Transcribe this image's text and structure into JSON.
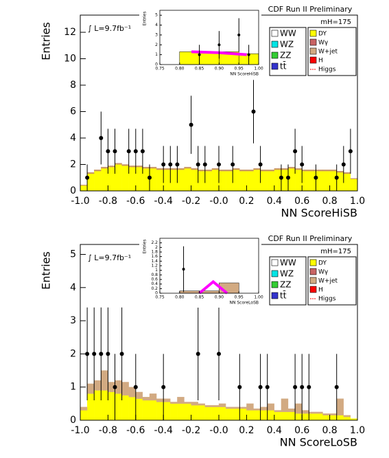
{
  "chart_data": [
    {
      "type": "histogram",
      "title": "CDF Run II Preliminary",
      "ylabel": "Entries",
      "xlabel": "NN ScoreHiSB",
      "lumi": "∫ L=9.7fb⁻¹",
      "mass_label": "mH=175",
      "xlim": [
        -1,
        1
      ],
      "ylim": [
        0,
        13.3
      ],
      "xticks": [
        {
          "value": -1,
          "label": "-1.0"
        },
        {
          "value": -0.8,
          "label": "-0.8"
        },
        {
          "value": -0.6,
          "label": "-0.6"
        },
        {
          "value": -0.4,
          "label": "-0.4"
        },
        {
          "value": -0.2,
          "label": "-0.2"
        },
        {
          "value": 0,
          "label": "-0.0"
        },
        0.2,
        0.4,
        0.6,
        0.8,
        {
          "value": 1,
          "label": "1.0"
        }
      ],
      "yticks": [
        0,
        2,
        4,
        6,
        8,
        10,
        12
      ],
      "bins": [
        -1,
        -0.95,
        -0.9,
        -0.85,
        -0.8,
        -0.75,
        -0.7,
        -0.65,
        -0.6,
        -0.55,
        -0.5,
        -0.45,
        -0.4,
        -0.35,
        -0.3,
        -0.25,
        -0.2,
        -0.15,
        -0.1,
        -0.05,
        0,
        0.05,
        0.1,
        0.15,
        0.2,
        0.25,
        0.3,
        0.35,
        0.4,
        0.45,
        0.5,
        0.55,
        0.6,
        0.65,
        0.7,
        0.75,
        0.8,
        0.85,
        0.9,
        0.95,
        1
      ],
      "series": [
        {
          "name": "DY",
          "color": "#ffff00",
          "values": [
            0.4,
            1.3,
            1.5,
            1.7,
            1.8,
            2.0,
            1.9,
            1.8,
            1.8,
            1.7,
            1.7,
            1.6,
            1.6,
            1.6,
            1.6,
            1.7,
            1.6,
            1.5,
            1.5,
            1.6,
            1.5,
            1.5,
            1.6,
            1.5,
            1.5,
            1.6,
            1.5,
            1.5,
            1.6,
            1.6,
            1.7,
            1.6,
            1.5,
            1.5,
            1.5,
            1.5,
            1.5,
            1.4,
            1.3,
            0.9
          ]
        },
        {
          "name": "W+jet",
          "color": "#c89664",
          "values": [
            0.05,
            0.1,
            0.1,
            0.1,
            0.1,
            0.1,
            0.1,
            0.1,
            0.1,
            0.1,
            0.1,
            0.1,
            0.1,
            0.1,
            0.1,
            0.1,
            0.1,
            0.1,
            0.1,
            0.1,
            0.1,
            0.1,
            0.1,
            0.1,
            0.1,
            0.1,
            0.1,
            0.1,
            0.1,
            0.1,
            0.1,
            0.1,
            0.1,
            0.1,
            0.1,
            0.1,
            0.1,
            0.1,
            0.1,
            0.05
          ]
        }
      ],
      "points": {
        "x": [
          -0.95,
          -0.85,
          -0.8,
          -0.75,
          -0.65,
          -0.6,
          -0.55,
          -0.5,
          -0.4,
          -0.35,
          -0.3,
          -0.2,
          -0.15,
          -0.1,
          0.0,
          0.1,
          0.25,
          0.3,
          0.45,
          0.5,
          0.55,
          0.6,
          0.7,
          0.85,
          0.9,
          0.95
        ],
        "values": [
          1,
          4,
          3,
          3,
          3,
          3,
          3,
          1,
          2,
          2,
          2,
          5,
          2,
          2,
          2,
          2,
          6,
          2,
          1,
          1,
          3,
          2,
          1,
          1,
          2,
          3
        ],
        "errors": [
          1,
          2,
          1.7,
          1.7,
          1.7,
          1.7,
          1.7,
          1,
          1.4,
          1.4,
          1.4,
          2.2,
          1.4,
          1.4,
          1.4,
          1.4,
          2.4,
          1.4,
          1,
          1,
          1.7,
          1.4,
          1,
          1,
          1.4,
          1.7
        ]
      },
      "legend": [
        {
          "name": "WW",
          "color": "#ffffff"
        },
        {
          "name": "WZ",
          "color": "#00e5e5"
        },
        {
          "name": "ZZ",
          "color": "#33cc33"
        },
        {
          "name": "tt̄",
          "color": "#3333cc"
        },
        {
          "name": "DY",
          "color": "#ffff00"
        },
        {
          "name": "Wγ",
          "color": "#c86464"
        },
        {
          "name": "W+jet",
          "color": "#d2aa82"
        },
        {
          "name": "H",
          "color": "#ff0000"
        },
        {
          "name": "Higgs",
          "color": "#ff0000"
        }
      ],
      "inset": {
        "ylabel": "Entries",
        "xlabel": "NN ScoreHiSB",
        "xlim": [
          0.75,
          1.0
        ],
        "ylim": [
          0,
          5.5
        ],
        "xticks": [
          0.75,
          {
            "value": 0.8,
            "label": "0.80"
          },
          0.85,
          {
            "value": 0.9,
            "label": "0.90"
          },
          0.95,
          {
            "value": 1,
            "label": "1.00"
          }
        ],
        "yticks": [
          0,
          1,
          2,
          3,
          4,
          5
        ],
        "bins": [
          0.75,
          0.8,
          0.85,
          0.9,
          0.95,
          1.0
        ],
        "color": "#ffff00",
        "values": [
          0,
          1.3,
          1.3,
          1.3,
          1.1
        ],
        "signal": {
          "color": "#ff00ff",
          "x": [
            0.83,
            0.9,
            0.97
          ],
          "values": [
            1.3,
            1.2,
            1.0
          ]
        },
        "points": {
          "x": [
            0.85,
            0.9,
            0.95,
            0.975
          ],
          "values": [
            1,
            2,
            3,
            1
          ],
          "errors": [
            1,
            1.4,
            1.7,
            1
          ]
        }
      }
    },
    {
      "type": "histogram",
      "title": "CDF Run II Preliminary",
      "ylabel": "Entries",
      "xlabel": "NN ScoreLoSB",
      "lumi": "∫ L=9.7fb⁻¹",
      "mass_label": "mH=175",
      "xlim": [
        -1,
        1
      ],
      "ylim": [
        0,
        5.3
      ],
      "xticks": [
        {
          "value": -1,
          "label": "-1.0"
        },
        {
          "value": -0.8,
          "label": "-0.8"
        },
        {
          "value": -0.6,
          "label": "-0.6"
        },
        {
          "value": -0.4,
          "label": "-0.4"
        },
        {
          "value": -0.2,
          "label": "-0.2"
        },
        {
          "value": 0,
          "label": "-0.0"
        },
        0.2,
        0.4,
        0.6,
        0.8,
        {
          "value": 1,
          "label": "1.0"
        }
      ],
      "yticks": [
        0,
        1,
        2,
        3,
        4,
        5
      ],
      "bins": [
        -1,
        -0.95,
        -0.9,
        -0.85,
        -0.8,
        -0.75,
        -0.7,
        -0.65,
        -0.6,
        -0.55,
        -0.5,
        -0.45,
        -0.4,
        -0.35,
        -0.3,
        -0.25,
        -0.2,
        -0.15,
        -0.1,
        -0.05,
        0,
        0.05,
        0.1,
        0.15,
        0.2,
        0.25,
        0.3,
        0.35,
        0.4,
        0.45,
        0.5,
        0.55,
        0.6,
        0.65,
        0.7,
        0.75,
        0.8,
        0.85,
        0.9,
        0.95,
        1
      ],
      "series": [
        {
          "name": "DY",
          "color": "#ffff00",
          "values": [
            0.3,
            0.8,
            0.9,
            0.9,
            0.85,
            0.8,
            0.75,
            0.7,
            0.65,
            0.6,
            0.6,
            0.55,
            0.55,
            0.5,
            0.5,
            0.5,
            0.45,
            0.45,
            0.4,
            0.4,
            0.4,
            0.35,
            0.35,
            0.35,
            0.3,
            0.3,
            0.3,
            0.3,
            0.25,
            0.25,
            0.25,
            0.2,
            0.2,
            0.2,
            0.2,
            0.15,
            0.15,
            0.15,
            0.1,
            0.05
          ]
        },
        {
          "name": "W+jet",
          "color": "#d2aa82",
          "values": [
            0.1,
            0.3,
            0.3,
            0.6,
            0.3,
            0.4,
            0.4,
            0.3,
            0.2,
            0.1,
            0.2,
            0.1,
            0.1,
            0.05,
            0.2,
            0.05,
            0.1,
            0.05,
            0.05,
            0.05,
            0.1,
            0.05,
            0.05,
            0.05,
            0.2,
            0.05,
            0.1,
            0.2,
            0.05,
            0.4,
            0.1,
            0.3,
            0.1,
            0.05,
            0.05,
            0.05,
            0.05,
            0.5,
            0.05,
            0
          ]
        }
      ],
      "points": {
        "x": [
          -0.95,
          -0.9,
          -0.85,
          -0.8,
          -0.75,
          -0.7,
          -0.6,
          -0.4,
          -0.15,
          0.0,
          0.15,
          0.3,
          0.35,
          0.55,
          0.6,
          0.65,
          0.85
        ],
        "values": [
          2,
          2,
          2,
          2,
          1,
          2,
          1,
          1,
          2,
          2,
          1,
          1,
          1,
          1,
          1,
          1,
          1
        ],
        "errors": [
          1.4,
          1.4,
          1.4,
          1.4,
          1,
          1.4,
          1,
          1,
          1.4,
          1.4,
          1,
          1,
          1,
          1,
          1,
          1,
          1
        ]
      },
      "legend": [
        {
          "name": "WW",
          "color": "#ffffff"
        },
        {
          "name": "WZ",
          "color": "#00e5e5"
        },
        {
          "name": "ZZ",
          "color": "#33cc33"
        },
        {
          "name": "tt̄",
          "color": "#3333cc"
        },
        {
          "name": "DY",
          "color": "#ffff00"
        },
        {
          "name": "Wγ",
          "color": "#c86464"
        },
        {
          "name": "W+jet",
          "color": "#d2aa82"
        },
        {
          "name": "H",
          "color": "#ff0000"
        },
        {
          "name": "Higgs",
          "color": "#ff0000"
        }
      ],
      "inset": {
        "ylabel": "Entries",
        "xlabel": "NN ScoreLoSB",
        "xlim": [
          0.75,
          1.0
        ],
        "ylim": [
          0,
          2.4
        ],
        "xticks": [
          0.75,
          {
            "value": 0.8,
            "label": "0.80"
          },
          0.85,
          {
            "value": 0.9,
            "label": "0.90"
          },
          0.95,
          {
            "value": 1,
            "label": "1.00"
          }
        ],
        "yticks": [
          0,
          0.2,
          0.4,
          0.6,
          0.8,
          1,
          1.2,
          1.4,
          1.6,
          1.8,
          2,
          2.2
        ],
        "bins": [
          0.75,
          0.8,
          0.85,
          0.9,
          0.95,
          1.0
        ],
        "color": "#d2aa82",
        "values": [
          0,
          0.1,
          0.1,
          0.45,
          0
        ],
        "signal": {
          "color": "#ff00ff",
          "x": [
            0.85,
            0.885,
            0.92
          ],
          "values": [
            0,
            0.5,
            0
          ]
        },
        "points": {
          "x": [
            0.81
          ],
          "values": [
            1.05
          ],
          "errors": [
            1.0
          ]
        }
      }
    }
  ]
}
